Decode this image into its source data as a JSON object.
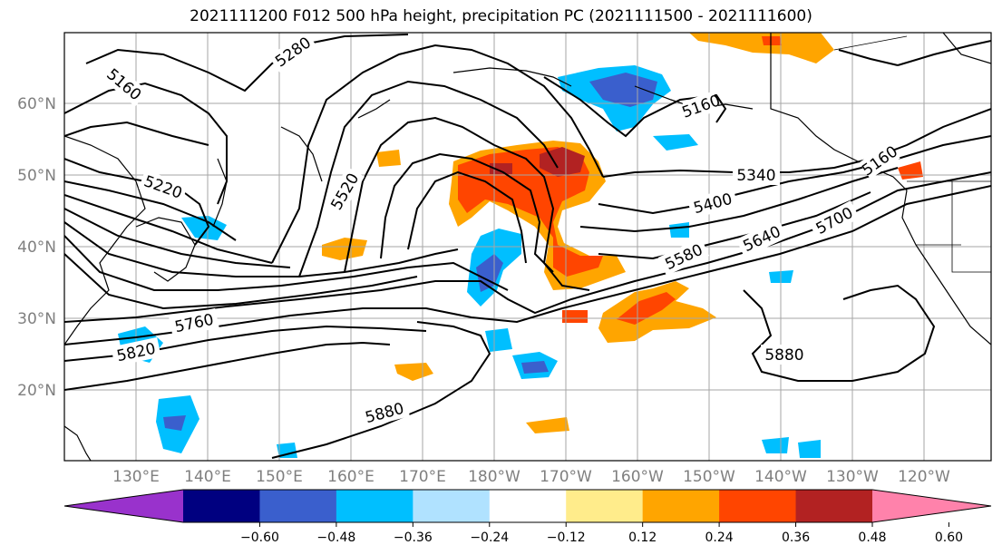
{
  "title": "2021111200 F012 500 hPa height, precipitation PC (2021111500 - 2021111600)",
  "lat_labels": [
    "60°N",
    "50°N",
    "40°N",
    "30°N",
    "20°N"
  ],
  "lon_labels": [
    "130°E",
    "140°E",
    "150°E",
    "160°E",
    "170°E",
    "180°W",
    "170°W",
    "160°W",
    "150°W",
    "140°W",
    "130°W",
    "120°W"
  ],
  "contour_labels": [
    "5160",
    "5280",
    "5220",
    "5520",
    "5340",
    "5400",
    "5580",
    "5640",
    "5700",
    "5760",
    "5820",
    "5880",
    "5880",
    "5160",
    "5160"
  ],
  "colorbar": {
    "ticks": [
      "−0.60",
      "−0.48",
      "−0.36",
      "−0.24",
      "−0.12",
      "0.12",
      "0.24",
      "0.36",
      "0.48",
      "0.60"
    ],
    "colors": [
      "#9932cc",
      "#000080",
      "#3a5fcd",
      "#00bfff",
      "#b0e2ff",
      "#ffffff",
      "#ffec8b",
      "#ffa500",
      "#ff4500",
      "#b22222",
      "#ff82ab"
    ]
  }
}
